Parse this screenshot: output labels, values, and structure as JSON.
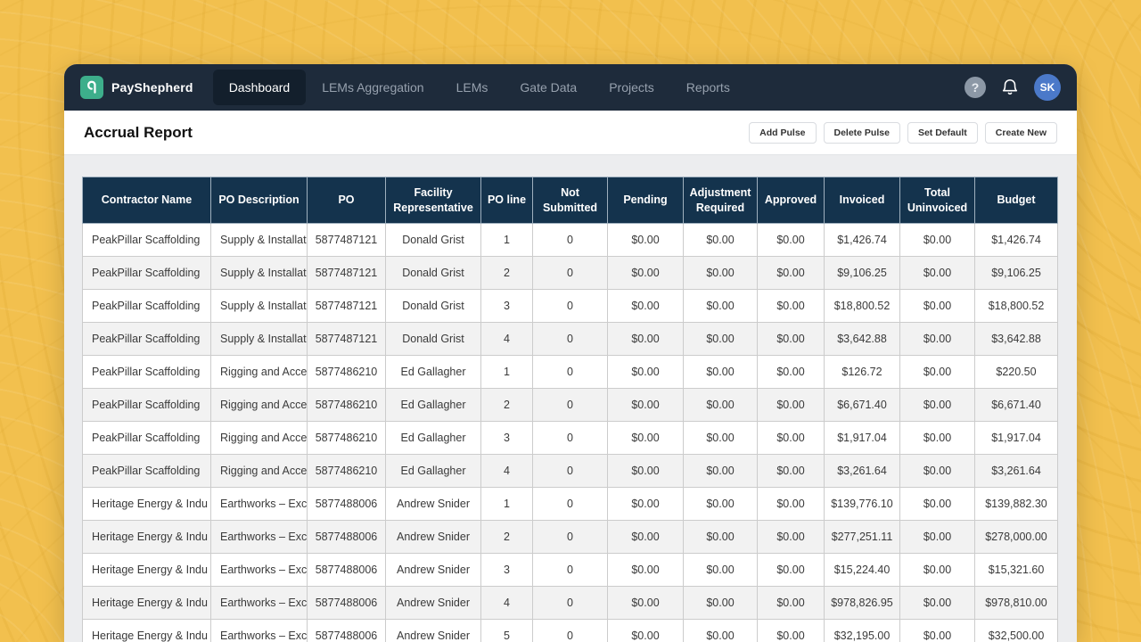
{
  "brand": {
    "name": "PayShepherd",
    "logo_icon": "shepherd-crook-icon",
    "logo_color": "#3DAE8B"
  },
  "nav": {
    "items": [
      {
        "label": "Dashboard",
        "active": true
      },
      {
        "label": "LEMs Aggregation",
        "active": false
      },
      {
        "label": "LEMs",
        "active": false
      },
      {
        "label": "Gate Data",
        "active": false
      },
      {
        "label": "Projects",
        "active": false
      },
      {
        "label": "Reports",
        "active": false
      }
    ],
    "help_label": "?",
    "avatar_initials": "SK",
    "avatar_color": "#4B79C9"
  },
  "page": {
    "title": "Accrual Report"
  },
  "toolbar": {
    "buttons": [
      {
        "label": "Add Pulse"
      },
      {
        "label": "Delete Pulse"
      },
      {
        "label": "Set Default"
      },
      {
        "label": "Create New"
      }
    ]
  },
  "table": {
    "columns": [
      "Contractor Name",
      "PO Description",
      "PO",
      "Facility Representative",
      "PO line",
      "Not Submitted",
      "Pending",
      "Adjustment Required",
      "Approved",
      "Invoiced",
      "Total Uninvoiced",
      "Budget"
    ],
    "rows": [
      [
        "PeakPillar Scaffolding",
        "Supply & Installat",
        "5877487121",
        "Donald Grist",
        "1",
        "0",
        "$0.00",
        "$0.00",
        "$0.00",
        "$1,426.74",
        "$0.00",
        "$1,426.74"
      ],
      [
        "PeakPillar Scaffolding",
        "Supply & Installat",
        "5877487121",
        "Donald Grist",
        "2",
        "0",
        "$0.00",
        "$0.00",
        "$0.00",
        "$9,106.25",
        "$0.00",
        "$9,106.25"
      ],
      [
        "PeakPillar Scaffolding",
        "Supply & Installat",
        "5877487121",
        "Donald Grist",
        "3",
        "0",
        "$0.00",
        "$0.00",
        "$0.00",
        "$18,800.52",
        "$0.00",
        "$18,800.52"
      ],
      [
        "PeakPillar Scaffolding",
        "Supply & Installat",
        "5877487121",
        "Donald Grist",
        "4",
        "0",
        "$0.00",
        "$0.00",
        "$0.00",
        "$3,642.88",
        "$0.00",
        "$3,642.88"
      ],
      [
        "PeakPillar Scaffolding",
        "Rigging and Acces",
        "5877486210",
        "Ed Gallagher",
        "1",
        "0",
        "$0.00",
        "$0.00",
        "$0.00",
        "$126.72",
        "$0.00",
        "$220.50"
      ],
      [
        "PeakPillar Scaffolding",
        "Rigging and Acces",
        "5877486210",
        "Ed Gallagher",
        "2",
        "0",
        "$0.00",
        "$0.00",
        "$0.00",
        "$6,671.40",
        "$0.00",
        "$6,671.40"
      ],
      [
        "PeakPillar Scaffolding",
        "Rigging and Acces",
        "5877486210",
        "Ed Gallagher",
        "3",
        "0",
        "$0.00",
        "$0.00",
        "$0.00",
        "$1,917.04",
        "$0.00",
        "$1,917.04"
      ],
      [
        "PeakPillar Scaffolding",
        "Rigging and Acces",
        "5877486210",
        "Ed Gallagher",
        "4",
        "0",
        "$0.00",
        "$0.00",
        "$0.00",
        "$3,261.64",
        "$0.00",
        "$3,261.64"
      ],
      [
        "Heritage Energy & Indu",
        "Earthworks – Exc",
        "5877488006",
        "Andrew Snider",
        "1",
        "0",
        "$0.00",
        "$0.00",
        "$0.00",
        "$139,776.10",
        "$0.00",
        "$139,882.30"
      ],
      [
        "Heritage Energy & Indu",
        "Earthworks – Exc",
        "5877488006",
        "Andrew Snider",
        "2",
        "0",
        "$0.00",
        "$0.00",
        "$0.00",
        "$277,251.11",
        "$0.00",
        "$278,000.00"
      ],
      [
        "Heritage Energy & Indu",
        "Earthworks – Exc",
        "5877488006",
        "Andrew Snider",
        "3",
        "0",
        "$0.00",
        "$0.00",
        "$0.00",
        "$15,224.40",
        "$0.00",
        "$15,321.60"
      ],
      [
        "Heritage Energy & Indu",
        "Earthworks – Exc",
        "5877488006",
        "Andrew Snider",
        "4",
        "0",
        "$0.00",
        "$0.00",
        "$0.00",
        "$978,826.95",
        "$0.00",
        "$978,810.00"
      ],
      [
        "Heritage Energy & Indu",
        "Earthworks – Exc",
        "5877488006",
        "Andrew Snider",
        "5",
        "0",
        "$0.00",
        "$0.00",
        "$0.00",
        "$32,195.00",
        "$0.00",
        "$32,500.00"
      ]
    ]
  },
  "colors": {
    "background": "#F2C04E",
    "navbar": "#1E2B3B",
    "nav_active_pill": "#131F2C",
    "table_header": "#14334D",
    "row_alt": "#F2F2F2",
    "border": "#CCCCCC"
  }
}
